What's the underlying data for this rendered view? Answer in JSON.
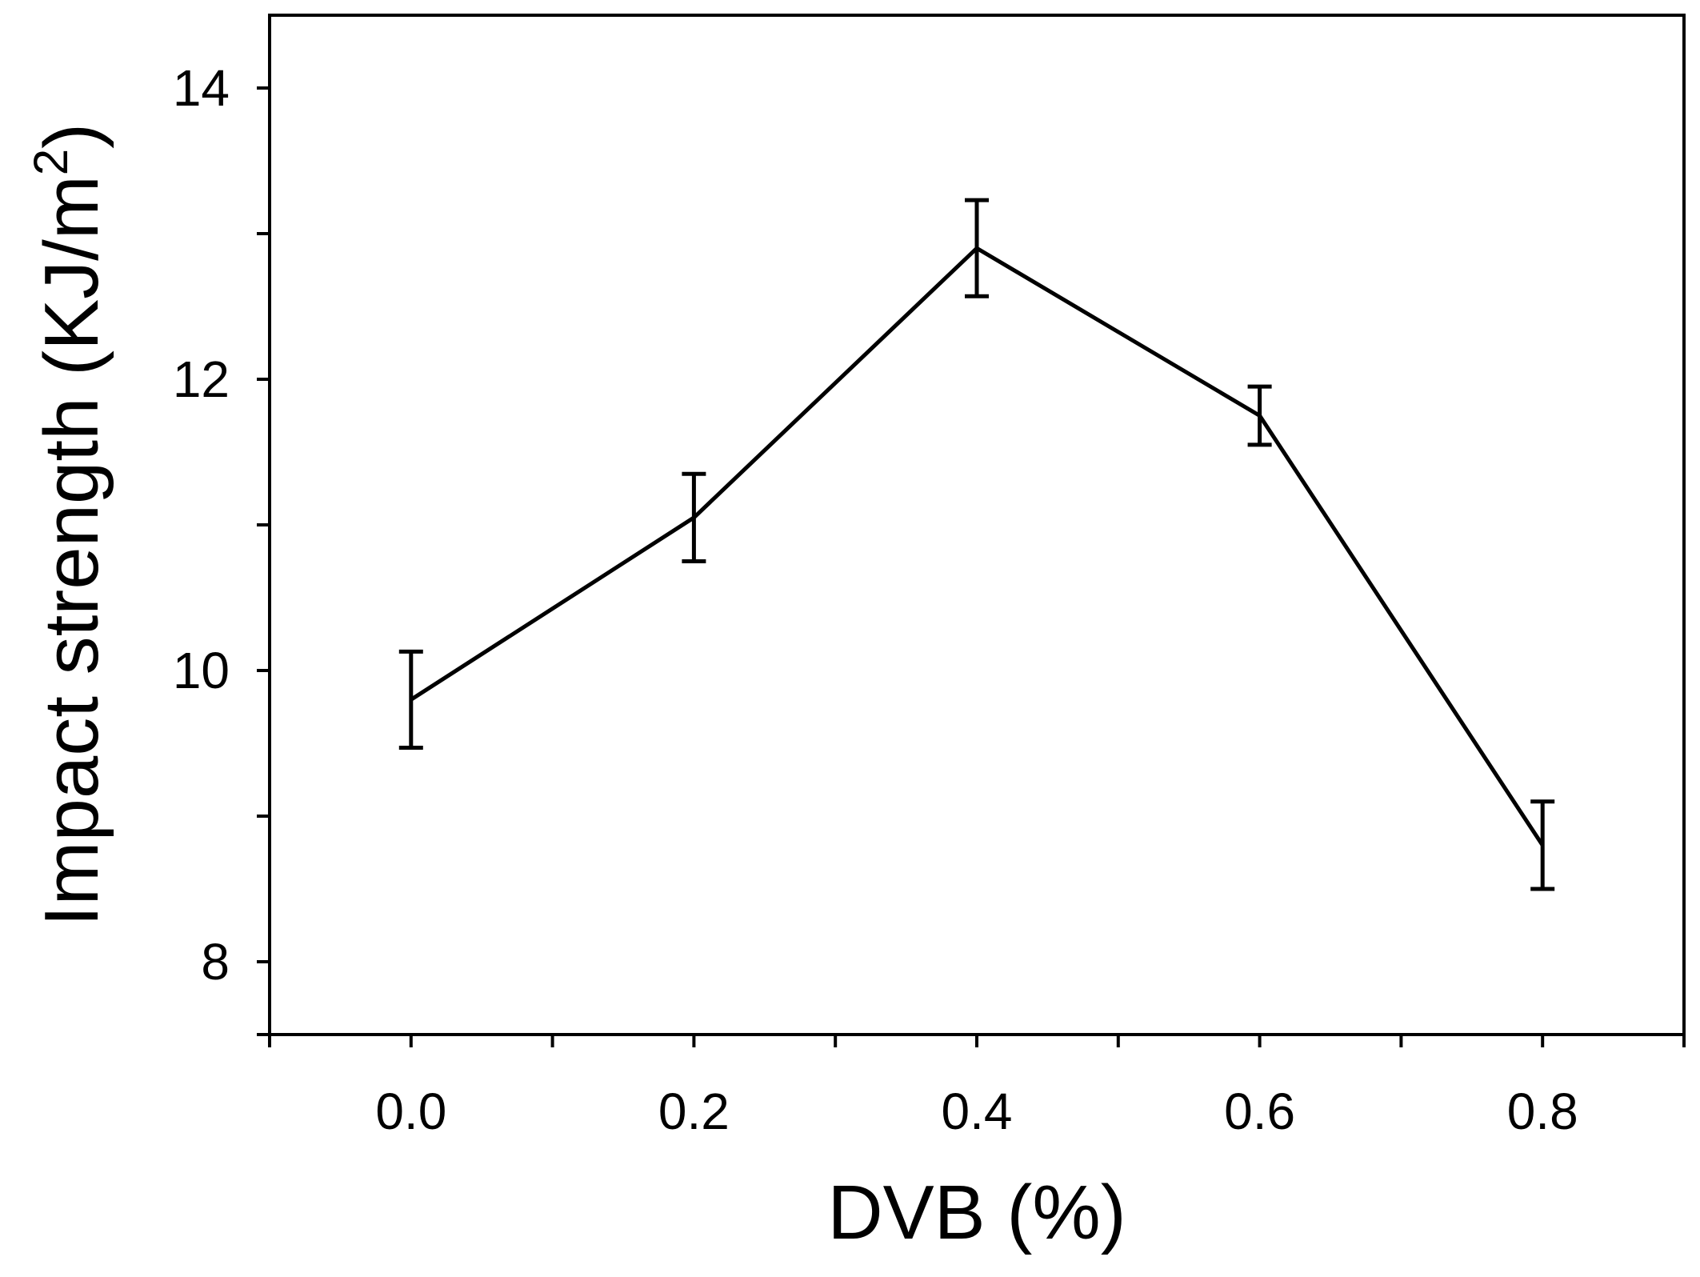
{
  "chart_data": {
    "type": "line",
    "xlabel": "DVB (%)",
    "ylabel_main": "Impact strength (KJ/m",
    "ylabel_sup": "2",
    "ylabel_close": ")",
    "xlim": [
      -0.1,
      0.9
    ],
    "ylim": [
      7.5,
      14.5
    ],
    "x_ticks": [
      0.0,
      0.2,
      0.4,
      0.6,
      0.8
    ],
    "x_tick_labels": [
      "0.0",
      "0.2",
      "0.4",
      "0.6",
      "0.8"
    ],
    "x_minor_ticks": [
      -0.1,
      0.1,
      0.3,
      0.5,
      0.7,
      0.9
    ],
    "y_ticks": [
      8,
      10,
      12,
      14
    ],
    "y_tick_labels": [
      "8",
      "10",
      "12",
      "14"
    ],
    "y_minor_ticks": [
      7.5,
      9,
      11,
      13
    ],
    "grid": false,
    "series": [
      {
        "x": [
          0.0,
          0.2,
          0.4,
          0.6,
          0.8
        ],
        "y": [
          9.8,
          11.05,
          12.9,
          11.75,
          8.8
        ],
        "error": [
          0.33,
          0.3,
          0.33,
          0.2,
          0.3
        ],
        "color": "#000000"
      }
    ]
  }
}
